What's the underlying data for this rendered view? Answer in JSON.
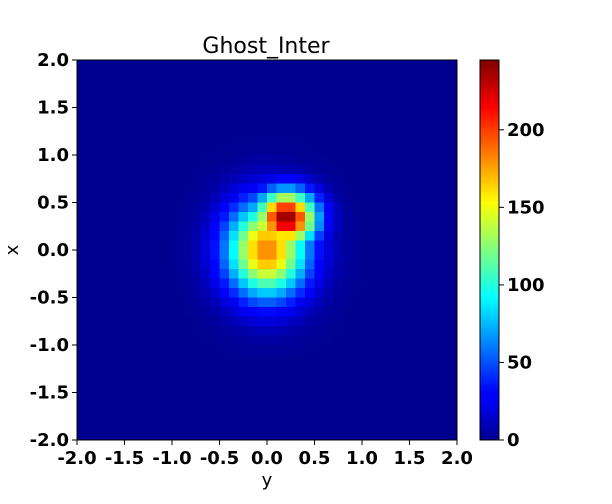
{
  "chart_data": {
    "type": "heatmap",
    "title": "Ghost_Inter",
    "xlabel": "y",
    "ylabel": "x",
    "xlim": [
      -2.0,
      2.0
    ],
    "ylim": [
      -2.0,
      2.0
    ],
    "x_ticks": [
      "-2.0",
      "-1.5",
      "-1.0",
      "-0.5",
      "0.0",
      "0.5",
      "1.0",
      "1.5",
      "2.0"
    ],
    "y_ticks": [
      "2.0",
      "1.5",
      "1.0",
      "0.5",
      "0.0",
      "-0.5",
      "-1.0",
      "-1.5",
      "-2.0"
    ],
    "colormap": "jet",
    "colorbar": {
      "min": 0,
      "max": 245,
      "ticks": [
        "0",
        "50",
        "100",
        "150",
        "200"
      ]
    },
    "grid_size": 40,
    "peak": {
      "y": 0.2,
      "x": 0.33,
      "value": 245
    },
    "colors": {
      "background": "#00008b",
      "frame": "#000000"
    }
  }
}
